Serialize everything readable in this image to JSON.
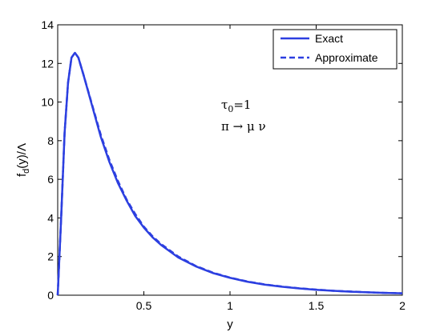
{
  "chart_data": {
    "type": "line",
    "title": "",
    "xlabel": "y",
    "ylabel": "f_d(y)/Λ",
    "xlim": [
      0,
      2
    ],
    "ylim": [
      0,
      14
    ],
    "x_ticks": [
      0.5,
      1,
      1.5,
      2
    ],
    "x_tick_labels": [
      "0.5",
      "1",
      "1.5",
      "2"
    ],
    "y_ticks": [
      0,
      2,
      4,
      6,
      8,
      10,
      12,
      14
    ],
    "y_tick_labels": [
      "0",
      "2",
      "4",
      "6",
      "8",
      "10",
      "12",
      "14"
    ],
    "grid": false,
    "legend": {
      "placement": "top-right",
      "entries": [
        "Exact",
        "Approximate"
      ]
    },
    "annotations": [
      "τ0=1",
      "π → μ ν"
    ],
    "series": [
      {
        "name": "Exact",
        "color": "#2c3fe0",
        "style": "solid",
        "x": [
          0,
          0.02,
          0.04,
          0.06,
          0.08,
          0.1,
          0.12,
          0.15,
          0.2,
          0.25,
          0.3,
          0.35,
          0.4,
          0.45,
          0.5,
          0.55,
          0.6,
          0.7,
          0.8,
          0.9,
          1.0,
          1.1,
          1.2,
          1.3,
          1.4,
          1.5,
          1.6,
          1.7,
          1.8,
          1.9,
          2.0
        ],
        "y": [
          0,
          4.0,
          8.4,
          11.0,
          12.3,
          12.55,
          12.3,
          11.4,
          9.8,
          8.2,
          6.9,
          5.8,
          4.9,
          4.1,
          3.5,
          3.0,
          2.6,
          1.95,
          1.5,
          1.15,
          0.9,
          0.7,
          0.55,
          0.44,
          0.35,
          0.28,
          0.23,
          0.18,
          0.15,
          0.12,
          0.1
        ]
      },
      {
        "name": "Approximate",
        "color": "#2c3fe0",
        "style": "dashed",
        "x": [
          0,
          0.02,
          0.04,
          0.06,
          0.08,
          0.1,
          0.12,
          0.15,
          0.2,
          0.25,
          0.3,
          0.35,
          0.4,
          0.45,
          0.5,
          0.55,
          0.6,
          0.7,
          0.8,
          0.9,
          1.0,
          1.1,
          1.2,
          1.3,
          1.4,
          1.5,
          1.6,
          1.7,
          1.8,
          1.9,
          2.0
        ],
        "y": [
          0,
          4.0,
          8.4,
          11.0,
          12.3,
          12.55,
          12.3,
          11.4,
          9.85,
          8.3,
          7.0,
          5.9,
          4.95,
          4.2,
          3.55,
          3.05,
          2.65,
          2.0,
          1.52,
          1.17,
          0.91,
          0.71,
          0.56,
          0.45,
          0.36,
          0.29,
          0.23,
          0.19,
          0.15,
          0.12,
          0.1
        ]
      }
    ]
  }
}
